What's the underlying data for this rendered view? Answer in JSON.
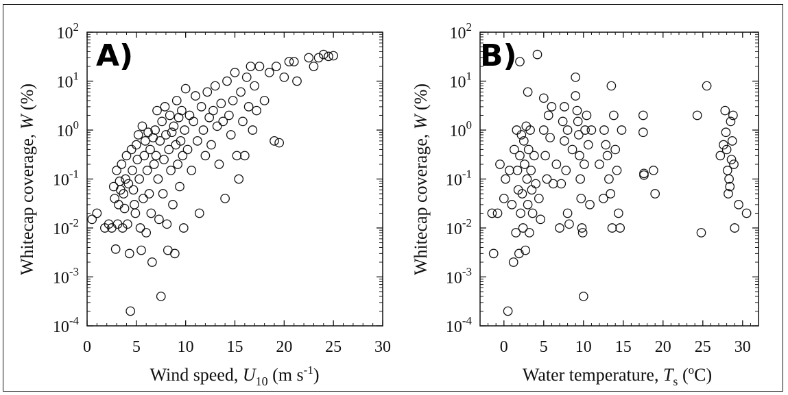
{
  "chart_data": [
    {
      "type": "scatter",
      "tag": "A)",
      "xlabel_pre": "Wind speed, ",
      "xlabel_var": "U",
      "xlabel_sub": "10",
      "xlabel_unit": " (m s",
      "xlabel_exp": "-1",
      "xlabel_close": ")",
      "ylabel_pre": "Whitecap coverage, ",
      "ylabel_var": "W",
      "ylabel_post": " (%)",
      "xlim": [
        0,
        30
      ],
      "ylim": [
        0.0001,
        100
      ],
      "yscale": "log",
      "xticks": [
        0,
        5,
        10,
        15,
        20,
        25,
        30
      ],
      "yticks": [
        {
          "base": "10",
          "exp": "-4"
        },
        {
          "base": "10",
          "exp": "-3"
        },
        {
          "base": "10",
          "exp": "-2"
        },
        {
          "base": "10",
          "exp": "-1"
        },
        {
          "base": "10",
          "exp": "0"
        },
        {
          "base": "10",
          "exp": "1"
        },
        {
          "base": "10",
          "exp": "2"
        }
      ],
      "grid": false,
      "points": [
        [
          0.5,
          0.015
        ],
        [
          1.0,
          0.02
        ],
        [
          1.8,
          0.01
        ],
        [
          2.2,
          0.012
        ],
        [
          2.5,
          0.01
        ],
        [
          2.7,
          0.07
        ],
        [
          2.8,
          0.04
        ],
        [
          2.9,
          0.0037
        ],
        [
          3.0,
          0.15
        ],
        [
          3.1,
          0.012
        ],
        [
          3.2,
          0.03
        ],
        [
          3.3,
          0.09
        ],
        [
          3.4,
          0.06
        ],
        [
          3.5,
          0.2
        ],
        [
          3.6,
          0.01
        ],
        [
          3.7,
          0.05
        ],
        [
          3.8,
          0.025
        ],
        [
          3.9,
          0.1
        ],
        [
          4.0,
          0.3
        ],
        [
          4.1,
          0.012
        ],
        [
          4.2,
          0.08
        ],
        [
          4.3,
          0.003
        ],
        [
          4.4,
          0.0002
        ],
        [
          4.5,
          0.4
        ],
        [
          4.6,
          0.15
        ],
        [
          4.7,
          0.06
        ],
        [
          4.8,
          0.03
        ],
        [
          4.9,
          0.02
        ],
        [
          5.0,
          0.5
        ],
        [
          5.1,
          0.25
        ],
        [
          5.2,
          0.8
        ],
        [
          5.3,
          0.1
        ],
        [
          5.4,
          0.01
        ],
        [
          5.5,
          0.0035
        ],
        [
          5.6,
          1.2
        ],
        [
          5.7,
          0.04
        ],
        [
          5.8,
          0.3
        ],
        [
          5.9,
          0.6
        ],
        [
          6.0,
          0.008
        ],
        [
          6.1,
          0.15
        ],
        [
          6.2,
          0.9
        ],
        [
          6.3,
          0.05
        ],
        [
          6.4,
          0.4
        ],
        [
          6.5,
          0.02
        ],
        [
          6.6,
          0.002
        ],
        [
          6.7,
          0.7
        ],
        [
          6.8,
          0.2
        ],
        [
          6.9,
          1.0
        ],
        [
          7.0,
          0.3
        ],
        [
          7.1,
          2.5
        ],
        [
          7.2,
          0.1
        ],
        [
          7.3,
          0.015
        ],
        [
          7.4,
          0.6
        ],
        [
          7.5,
          0.0004
        ],
        [
          7.6,
          1.5
        ],
        [
          7.7,
          0.05
        ],
        [
          7.8,
          0.25
        ],
        [
          7.9,
          3.0
        ],
        [
          8.0,
          0.8
        ],
        [
          8.1,
          0.012
        ],
        [
          8.2,
          0.0035
        ],
        [
          8.3,
          0.4
        ],
        [
          8.4,
          2.0
        ],
        [
          8.5,
          0.15
        ],
        [
          8.6,
          0.9
        ],
        [
          8.7,
          0.03
        ],
        [
          8.8,
          1.2
        ],
        [
          8.9,
          0.003
        ],
        [
          9.0,
          0.5
        ],
        [
          9.1,
          4.0
        ],
        [
          9.2,
          0.2
        ],
        [
          9.3,
          1.8
        ],
        [
          9.4,
          0.07
        ],
        [
          9.5,
          0.6
        ],
        [
          9.6,
          2.5
        ],
        [
          9.7,
          0.3
        ],
        [
          9.8,
          0.01
        ],
        [
          9.9,
          1.0
        ],
        [
          10.0,
          7.0
        ],
        [
          10.2,
          0.4
        ],
        [
          10.4,
          2.0
        ],
        [
          10.6,
          0.15
        ],
        [
          10.8,
          1.5
        ],
        [
          11.0,
          5.0
        ],
        [
          11.2,
          0.6
        ],
        [
          11.4,
          0.02
        ],
        [
          11.6,
          3.0
        ],
        [
          11.8,
          1.0
        ],
        [
          12.0,
          0.3
        ],
        [
          12.2,
          6.0
        ],
        [
          12.4,
          1.8
        ],
        [
          12.6,
          0.5
        ],
        [
          12.8,
          2.5
        ],
        [
          13.0,
          8.0
        ],
        [
          13.2,
          1.2
        ],
        [
          13.4,
          0.2
        ],
        [
          13.6,
          3.5
        ],
        [
          13.8,
          1.5
        ],
        [
          14.0,
          0.04
        ],
        [
          14.2,
          10.0
        ],
        [
          14.4,
          2.0
        ],
        [
          14.6,
          0.8
        ],
        [
          14.8,
          4.0
        ],
        [
          15.0,
          15.0
        ],
        [
          15.2,
          0.3
        ],
        [
          15.4,
          0.1
        ],
        [
          15.6,
          6.0
        ],
        [
          15.8,
          1.5
        ],
        [
          16.0,
          0.3
        ],
        [
          16.2,
          12.0
        ],
        [
          16.4,
          3.0
        ],
        [
          16.6,
          20.0
        ],
        [
          16.8,
          1.0
        ],
        [
          17.0,
          8.0
        ],
        [
          17.2,
          2.5
        ],
        [
          17.5,
          20.0
        ],
        [
          18.0,
          4.0
        ],
        [
          18.5,
          15.0
        ],
        [
          19.0,
          0.6
        ],
        [
          19.2,
          20.0
        ],
        [
          19.5,
          0.55
        ],
        [
          20.0,
          12.0
        ],
        [
          20.5,
          25.0
        ],
        [
          21.0,
          25.0
        ],
        [
          21.3,
          10.0
        ],
        [
          22.5,
          30.0
        ],
        [
          23.0,
          20.0
        ],
        [
          23.5,
          30.0
        ],
        [
          24.0,
          35.0
        ],
        [
          24.5,
          32.0
        ],
        [
          25.0,
          33.0
        ]
      ]
    },
    {
      "type": "scatter",
      "tag": "B)",
      "xlabel_pre": "Water temperature, ",
      "xlabel_var": "T",
      "xlabel_sub": "s",
      "xlabel_unit": " (",
      "xlabel_exp": "o",
      "xlabel_close": "C)",
      "ylabel_pre": "Whitecap coverage, ",
      "ylabel_var": "W",
      "ylabel_post": " (%)",
      "xlim": [
        -3,
        32
      ],
      "ylim": [
        0.0001,
        100
      ],
      "yscale": "log",
      "xticks": [
        0,
        5,
        10,
        15,
        20,
        25,
        30
      ],
      "yticks": [
        {
          "base": "10",
          "exp": "-4"
        },
        {
          "base": "10",
          "exp": "-3"
        },
        {
          "base": "10",
          "exp": "-2"
        },
        {
          "base": "10",
          "exp": "-1"
        },
        {
          "base": "10",
          "exp": "0"
        },
        {
          "base": "10",
          "exp": "1"
        },
        {
          "base": "10",
          "exp": "2"
        }
      ],
      "grid": false,
      "points": [
        [
          -1.5,
          0.02
        ],
        [
          -1.3,
          0.003
        ],
        [
          -0.8,
          0.02
        ],
        [
          -0.5,
          0.2
        ],
        [
          0.0,
          0.04
        ],
        [
          0.2,
          0.1
        ],
        [
          0.5,
          0.0002
        ],
        [
          0.7,
          0.15
        ],
        [
          1.0,
          0.03
        ],
        [
          1.2,
          0.002
        ],
        [
          1.3,
          0.4
        ],
        [
          1.5,
          0.008
        ],
        [
          1.6,
          1.0
        ],
        [
          1.7,
          0.15
        ],
        [
          1.8,
          0.06
        ],
        [
          1.9,
          0.003
        ],
        [
          2.0,
          25.0
        ],
        [
          2.0,
          0.3
        ],
        [
          2.1,
          0.02
        ],
        [
          2.2,
          0.8
        ],
        [
          2.3,
          0.05
        ],
        [
          2.4,
          0.01
        ],
        [
          2.5,
          0.6
        ],
        [
          2.6,
          0.2
        ],
        [
          2.7,
          0.0035
        ],
        [
          2.8,
          1.2
        ],
        [
          2.9,
          0.1
        ],
        [
          3.0,
          6.0
        ],
        [
          3.0,
          0.03
        ],
        [
          3.1,
          0.4
        ],
        [
          3.2,
          0.008
        ],
        [
          3.3,
          1.0
        ],
        [
          3.4,
          0.15
        ],
        [
          3.5,
          0.06
        ],
        [
          3.6,
          0.02
        ],
        [
          3.8,
          0.3
        ],
        [
          4.0,
          0.08
        ],
        [
          4.2,
          35.0
        ],
        [
          4.4,
          0.04
        ],
        [
          4.6,
          0.015
        ],
        [
          5.0,
          4.5
        ],
        [
          5.0,
          1.0
        ],
        [
          5.2,
          0.3
        ],
        [
          5.4,
          0.1
        ],
        [
          5.6,
          2.0
        ],
        [
          5.8,
          0.7
        ],
        [
          6.0,
          3.0
        ],
        [
          6.2,
          0.08
        ],
        [
          6.6,
          0.2
        ],
        [
          7.0,
          0.01
        ],
        [
          7.2,
          0.08
        ],
        [
          7.4,
          1.5
        ],
        [
          7.6,
          0.6
        ],
        [
          7.6,
          3.0
        ],
        [
          7.8,
          0.15
        ],
        [
          8.0,
          0.02
        ],
        [
          8.0,
          1.0
        ],
        [
          8.2,
          0.012
        ],
        [
          8.6,
          0.4
        ],
        [
          9.0,
          12.0
        ],
        [
          9.0,
          5.0
        ],
        [
          9.2,
          2.5
        ],
        [
          9.3,
          1.5
        ],
        [
          9.4,
          0.8
        ],
        [
          9.5,
          0.3
        ],
        [
          9.6,
          0.1
        ],
        [
          9.7,
          0.04
        ],
        [
          9.8,
          0.01
        ],
        [
          9.9,
          0.008
        ],
        [
          10.0,
          0.0004
        ],
        [
          10.1,
          0.2
        ],
        [
          10.2,
          1.0
        ],
        [
          10.4,
          2.0
        ],
        [
          10.6,
          0.5
        ],
        [
          10.8,
          0.03
        ],
        [
          11.0,
          1.0
        ],
        [
          12.0,
          0.2
        ],
        [
          12.5,
          0.04
        ],
        [
          12.6,
          1.0
        ],
        [
          12.8,
          0.5
        ],
        [
          13.0,
          0.3
        ],
        [
          13.2,
          0.1
        ],
        [
          13.4,
          0.05
        ],
        [
          13.5,
          8.0
        ],
        [
          13.6,
          0.01
        ],
        [
          13.8,
          2.0
        ],
        [
          14.0,
          0.4
        ],
        [
          14.2,
          0.15
        ],
        [
          14.4,
          0.02
        ],
        [
          14.6,
          0.01
        ],
        [
          14.8,
          1.0
        ],
        [
          17.5,
          2.0
        ],
        [
          17.5,
          0.9
        ],
        [
          17.6,
          0.12
        ],
        [
          17.6,
          0.13
        ],
        [
          18.8,
          0.15
        ],
        [
          19.0,
          0.05
        ],
        [
          24.3,
          2.0
        ],
        [
          24.8,
          0.008
        ],
        [
          25.5,
          8.0
        ],
        [
          27.2,
          0.3
        ],
        [
          27.6,
          0.5
        ],
        [
          27.8,
          2.5
        ],
        [
          27.9,
          0.9
        ],
        [
          28.0,
          0.4
        ],
        [
          28.1,
          0.15
        ],
        [
          28.2,
          0.05
        ],
        [
          28.3,
          0.1
        ],
        [
          28.4,
          0.07
        ],
        [
          28.5,
          1.5
        ],
        [
          28.6,
          0.25
        ],
        [
          28.7,
          0.6
        ],
        [
          28.8,
          2.0
        ],
        [
          28.9,
          0.2
        ],
        [
          29.0,
          0.01
        ],
        [
          29.5,
          0.03
        ],
        [
          30.5,
          0.02
        ]
      ]
    }
  ]
}
